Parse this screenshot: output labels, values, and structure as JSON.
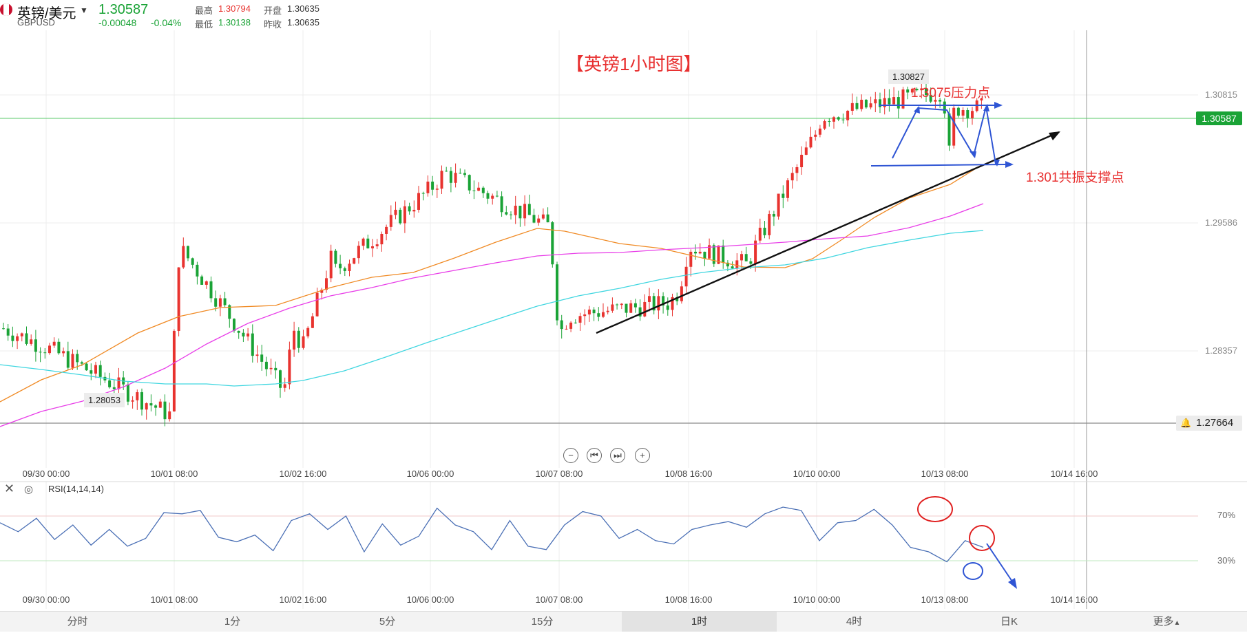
{
  "header": {
    "pair_name": "英镑/美元",
    "ticker": "GBPUSD",
    "price": "1.30587",
    "change": "-0.00048",
    "change_pct": "-0.04%",
    "stats": [
      {
        "label": "最高",
        "value": "1.30794"
      },
      {
        "label": "开盘",
        "value": "1.30635"
      },
      {
        "label": "最低",
        "value": "1.30138"
      },
      {
        "label": "昨收",
        "value": "1.30635"
      }
    ]
  },
  "annotations": {
    "title": "【英镑1小时图】",
    "resistance": "1.3075压力点",
    "support": "1.301共振支撑点",
    "high_tag": "1.30827",
    "low_tag": "1.28053"
  },
  "price_axis": {
    "ticks": [
      "1.30815",
      "1.29586",
      "1.28357"
    ],
    "current_price": "1.30587",
    "alert_price": "1.27664"
  },
  "time_axis": [
    "09/30 00:00",
    "10/01 08:00",
    "10/02 16:00",
    "10/06 00:00",
    "10/07 08:00",
    "10/08 16:00",
    "10/10 00:00",
    "10/13 08:00",
    "10/14 16:00"
  ],
  "rsi": {
    "label": "RSI(14,14,14)",
    "levels": [
      "70%",
      "30%"
    ]
  },
  "timeframe_tabs": [
    "分时",
    "1分",
    "5分",
    "15分",
    "1时",
    "4时",
    "日K",
    "更多"
  ],
  "active_tab": "1时",
  "colors": {
    "up": "#e8332f",
    "down": "#1aa336",
    "ma_orange": "#f08a24",
    "ma_magenta": "#e83ee8",
    "ma_cyan": "#3fd6e0",
    "annotation_red": "#e83030",
    "annotation_blue": "#2f55d4",
    "rsi_line": "#4a6fb5"
  },
  "chart_data": {
    "type": "candlestick",
    "symbol": "GBPUSD",
    "interval": "1 hour",
    "x_ticks": [
      "09/30 00:00",
      "10/01 08:00",
      "10/02 16:00",
      "10/06 00:00",
      "10/07 08:00",
      "10/08 16:00",
      "10/10 00:00",
      "10/13 08:00",
      "10/14 16:00"
    ],
    "y_ticks": [
      1.30815,
      1.29586,
      1.28357
    ],
    "ylim": [
      1.2775,
      1.312
    ],
    "last_price": 1.30587,
    "period_high": 1.30827,
    "period_low": 1.28053,
    "price_path": [
      {
        "t": "09/30 00:00",
        "y": 1.2885
      },
      {
        "t": "09/30 12:00",
        "y": 1.287
      },
      {
        "t": "10/01 00:00",
        "y": 1.2815
      },
      {
        "t": "10/01 08:00",
        "y": 1.2935
      },
      {
        "t": "10/01 16:00",
        "y": 1.2945
      },
      {
        "t": "10/02 00:00",
        "y": 1.2835
      },
      {
        "t": "10/02 08:00",
        "y": 1.2885
      },
      {
        "t": "10/02 16:00",
        "y": 1.287
      },
      {
        "t": "10/03 00:00",
        "y": 1.294
      },
      {
        "t": "10/03 12:00",
        "y": 1.293
      },
      {
        "t": "10/06 00:00",
        "y": 1.2995
      },
      {
        "t": "10/06 12:00",
        "y": 1.3008
      },
      {
        "t": "10/07 00:00",
        "y": 1.2965
      },
      {
        "t": "10/07 08:00",
        "y": 1.288
      },
      {
        "t": "10/07 16:00",
        "y": 1.2895
      },
      {
        "t": "10/08 00:00",
        "y": 1.2905
      },
      {
        "t": "10/08 08:00",
        "y": 1.2915
      },
      {
        "t": "10/08 16:00",
        "y": 1.295
      },
      {
        "t": "10/09 00:00",
        "y": 1.2935
      },
      {
        "t": "10/09 12:00",
        "y": 1.295
      },
      {
        "t": "10/10 00:00",
        "y": 1.304
      },
      {
        "t": "10/10 12:00",
        "y": 1.3052
      },
      {
        "t": "10/13 00:00",
        "y": 1.3072
      },
      {
        "t": "10/13 08:00",
        "y": 1.306
      },
      {
        "t": "10/13 12:00",
        "y": 1.302
      },
      {
        "t": "10/13 16:00",
        "y": 1.30587
      }
    ],
    "series": [
      {
        "name": "MA (orange)",
        "path": [
          1.2798,
          1.284,
          1.2868,
          1.2892,
          1.291,
          1.292,
          1.2955,
          1.2982,
          1.2958,
          1.2938,
          1.292,
          1.2945,
          1.299,
          1.3012
        ]
      },
      {
        "name": "MA (magenta)",
        "path": [
          1.2782,
          1.281,
          1.2843,
          1.288,
          1.2903,
          1.293,
          1.2945,
          1.2945,
          1.295,
          1.296,
          1.298,
          1.2995
        ]
      },
      {
        "name": "MA (cyan)",
        "path": [
          1.2845,
          1.2828,
          1.2826,
          1.2835,
          1.2862,
          1.289,
          1.2912,
          1.2925,
          1.2945,
          1.296,
          1.2978
        ]
      }
    ],
    "levels": {
      "resistance": 1.3075,
      "support": 1.301,
      "alert": 1.27664
    },
    "rsi": {
      "period": 14,
      "levels": [
        70,
        30
      ],
      "path": [
        64,
        56,
        68,
        49,
        62,
        44,
        58,
        43,
        50,
        73,
        72,
        75,
        51,
        47,
        53,
        39,
        66,
        72,
        58,
        70,
        38,
        63,
        44,
        52,
        77,
        62,
        56,
        40,
        66,
        43,
        40,
        62,
        74,
        70,
        50,
        58,
        48,
        45,
        58,
        62,
        65,
        60,
        72,
        78,
        75,
        48,
        64,
        66,
        76,
        62,
        42,
        38,
        29,
        48,
        42
      ]
    }
  }
}
